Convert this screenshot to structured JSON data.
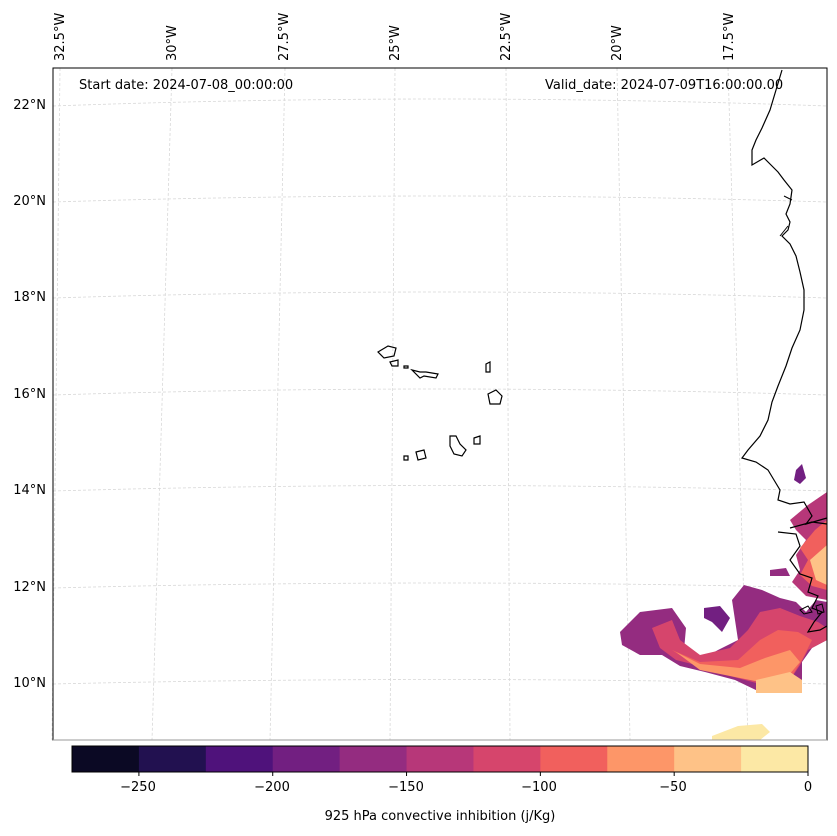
{
  "map": {
    "start_date": "Start date: 2024-07-08_00:00:00",
    "valid_date": "Valid_date: 2024-07-09T16:00:00.00",
    "lat_labels": [
      "22°N",
      "20°N",
      "18°N",
      "16°N",
      "14°N",
      "12°N",
      "10°N"
    ],
    "lon_labels": [
      "32.5°W",
      "30°W",
      "27.5°W",
      "25°W",
      "22.5°W",
      "20°W",
      "17.5°W"
    ]
  },
  "colorbar": {
    "label": "925 hPa convective inhibition (j/Kg)",
    "ticks": [
      "−250",
      "−200",
      "−150",
      "−100",
      "−50",
      "0"
    ],
    "colors": [
      "#0b0924",
      "#221150",
      "#4f127b",
      "#721f81",
      "#942c80",
      "#b73779",
      "#d6456c",
      "#f1605d",
      "#fd9668",
      "#fec287",
      "#fce8a5"
    ],
    "range": [
      -275,
      0
    ],
    "step": 25
  }
}
